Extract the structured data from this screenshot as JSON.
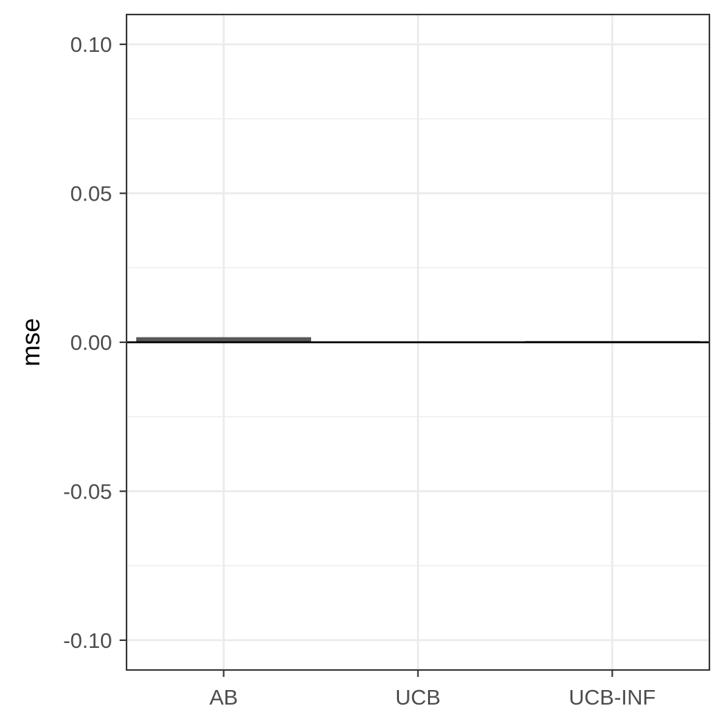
{
  "chart_data": {
    "type": "bar",
    "categories": [
      "AB",
      "UCB",
      "UCB-INF"
    ],
    "values": [
      0.0017,
      0.0001,
      0.0004
    ],
    "xlabel": "",
    "ylabel": "mse",
    "ylim": [
      -0.11,
      0.11
    ],
    "y_ticks": [
      0.1,
      0.05,
      0.0,
      -0.05,
      -0.1
    ],
    "y_tick_labels": [
      "0.10",
      "0.05",
      "0.00",
      "-0.05",
      "-0.10"
    ],
    "grid": true,
    "reference_line": 0,
    "colors": {
      "bar": "#595959",
      "grid": "#ebebeb",
      "panel_border": "#333333",
      "reference_line": "#000000",
      "tick_text": "#4d4d4d"
    }
  }
}
